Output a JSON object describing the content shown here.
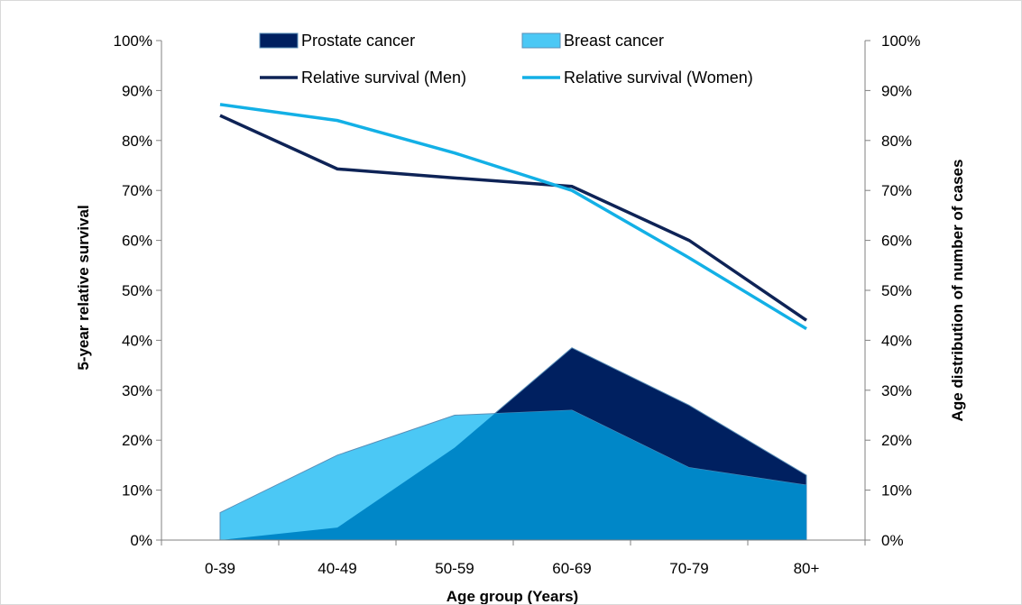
{
  "chart_data": {
    "type": "area",
    "categories": [
      "0-39",
      "40-49",
      "50-59",
      "60-69",
      "70-79",
      "80+"
    ],
    "y_left": {
      "label": "5-year relative survival",
      "ylim": [
        0,
        100
      ],
      "ticks": [
        "0%",
        "10%",
        "20%",
        "30%",
        "40%",
        "50%",
        "60%",
        "70%",
        "80%",
        "90%",
        "100%"
      ]
    },
    "y_right": {
      "label": "Age distribution of number of cases",
      "ylim": [
        0,
        100
      ],
      "ticks": [
        "0%",
        "10%",
        "20%",
        "30%",
        "40%",
        "50%",
        "60%",
        "70%",
        "80%",
        "90%",
        "100%"
      ]
    },
    "xlabel": "Age group (Years)",
    "series": [
      {
        "name": "Prostate cancer",
        "kind": "area",
        "axis": "right",
        "color": "#002060",
        "values": [
          0,
          2.5,
          18.5,
          38.5,
          27,
          13
        ]
      },
      {
        "name": "Breast cancer",
        "kind": "area",
        "axis": "right",
        "color": "#4BC8F5",
        "values": [
          5.5,
          17,
          25,
          26,
          14.5,
          11
        ]
      },
      {
        "name": "Relative survival (Men)",
        "kind": "line",
        "axis": "left",
        "color": "#0E2356",
        "values": [
          85,
          74.3,
          72.5,
          70.8,
          60,
          44
        ]
      },
      {
        "name": "Relative survival (Women)",
        "kind": "line",
        "axis": "left",
        "color": "#13B0E6",
        "values": [
          87.2,
          84,
          77.5,
          70,
          56.5,
          42.3
        ]
      }
    ],
    "overlap_color": "#0087C8",
    "legend": {
      "position": "top"
    },
    "grid": false
  }
}
